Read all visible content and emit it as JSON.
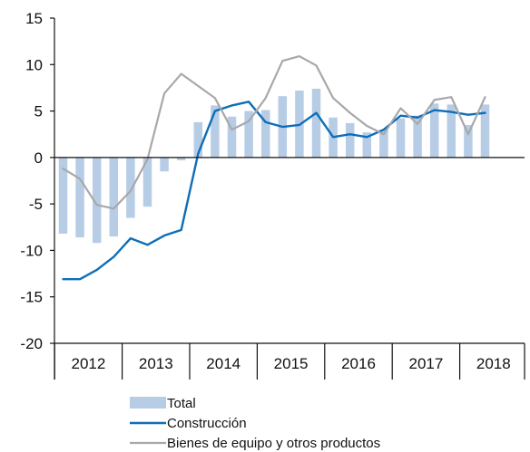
{
  "chart_data": {
    "type": "bar",
    "title": "",
    "xlabel": "",
    "ylabel": "",
    "ylim": [
      -20,
      15
    ],
    "yticks": [
      15,
      10,
      5,
      0,
      -5,
      -10,
      -15,
      -20
    ],
    "grid": false,
    "legend_position": "bottom",
    "x_periods": [
      "2012-Q1",
      "2012-Q2",
      "2012-Q3",
      "2012-Q4",
      "2013-Q1",
      "2013-Q2",
      "2013-Q3",
      "2013-Q4",
      "2014-Q1",
      "2014-Q2",
      "2014-Q3",
      "2014-Q4",
      "2015-Q1",
      "2015-Q2",
      "2015-Q3",
      "2015-Q4",
      "2016-Q1",
      "2016-Q2",
      "2016-Q3",
      "2016-Q4",
      "2017-Q1",
      "2017-Q2",
      "2017-Q3",
      "2017-Q4",
      "2018-Q1",
      "2018-Q2"
    ],
    "year_labels": [
      "2012",
      "2013",
      "2014",
      "2015",
      "2016",
      "2017",
      "2018"
    ],
    "series": [
      {
        "name": "Total",
        "type": "bar",
        "color": "#b7cde6",
        "values": [
          -8.2,
          -8.6,
          -9.2,
          -8.5,
          -6.5,
          -5.3,
          -1.5,
          -0.3,
          3.8,
          5.6,
          4.4,
          5.0,
          5.1,
          6.6,
          7.2,
          7.4,
          4.3,
          3.7,
          2.7,
          3.0,
          4.2,
          4.5,
          5.8,
          5.7,
          3.5,
          5.7
        ]
      },
      {
        "name": "Construcción",
        "type": "line",
        "color": "#0e6eb8",
        "values": [
          -13.1,
          -13.1,
          -12.1,
          -10.7,
          -8.7,
          -9.4,
          -8.4,
          -7.8,
          0.4,
          5.0,
          5.6,
          6.0,
          3.8,
          3.3,
          3.5,
          4.8,
          2.2,
          2.5,
          2.2,
          3.0,
          4.5,
          4.3,
          5.1,
          4.9,
          4.6,
          4.8
        ]
      },
      {
        "name": "Bienes de equipo y otros productos",
        "type": "line",
        "color": "#a8a8a8",
        "values": [
          -1.2,
          -2.3,
          -5.1,
          -5.5,
          -3.6,
          -0.2,
          6.9,
          9.0,
          7.7,
          6.4,
          3.0,
          3.9,
          6.4,
          10.4,
          10.9,
          9.9,
          6.4,
          4.8,
          3.4,
          2.5,
          5.3,
          3.6,
          6.2,
          6.5,
          2.5,
          6.5
        ]
      }
    ]
  },
  "legend": {
    "items": [
      "Total",
      "Construcción",
      "Bienes de equipo y otros productos"
    ]
  }
}
